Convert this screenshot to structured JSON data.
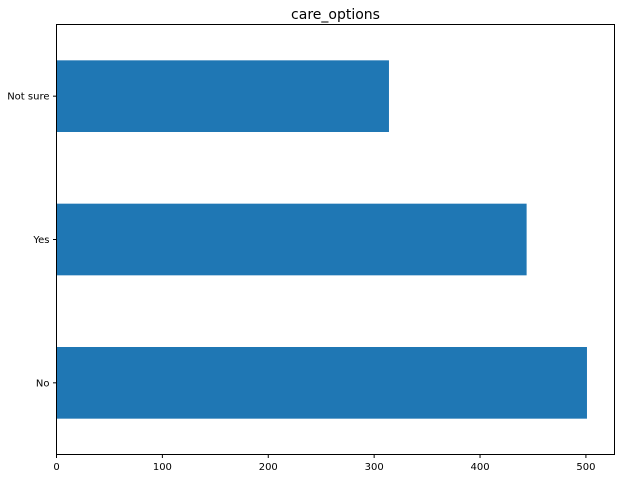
{
  "chart_data": {
    "type": "bar",
    "orientation": "horizontal",
    "title": "care_options",
    "xlabel": "",
    "ylabel": "",
    "categories": [
      "No",
      "Yes",
      "Not sure"
    ],
    "values": [
      501,
      444,
      314
    ],
    "xlim": [
      0,
      527
    ],
    "xticks": [
      0,
      100,
      200,
      300,
      400,
      500
    ],
    "bar_color": "#1f77b4",
    "grid": false,
    "legend": "none"
  }
}
